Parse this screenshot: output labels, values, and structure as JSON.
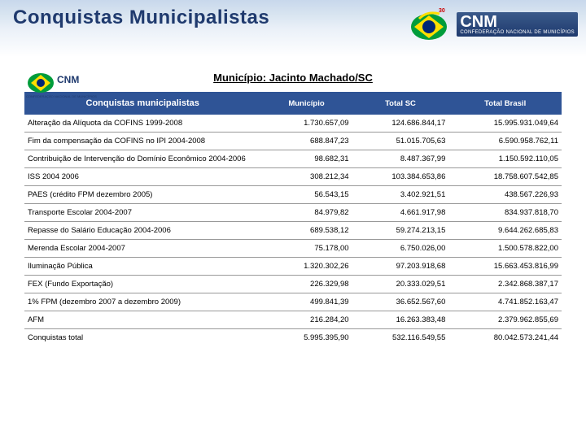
{
  "header": {
    "title": "Conquistas Municipalistas",
    "logo_cnm": "CNM",
    "logo_sub": "CONFEDERAÇÃO NACIONAL DE MUNICÍPIOS"
  },
  "subtitle": "Município: Jacinto Machado/SC",
  "table": {
    "headers": [
      "Conquistas municipalistas",
      "Município",
      "Total SC",
      "Total Brasil"
    ],
    "rows": [
      [
        "Alteração da Alíquota da COFINS        1999-2008",
        "1.730.657,09",
        "124.686.844,17",
        "15.995.931.049,64"
      ],
      [
        "Fim da compensação da COFINS no IPI         2004-2008",
        "688.847,23",
        "51.015.705,63",
        "6.590.958.762,11"
      ],
      [
        "Contribuição de Intervenção do Domínio Econômico        2004-2006",
        "98.682,31",
        "8.487.367,99",
        "1.150.592.110,05"
      ],
      [
        "ISS        2004 2006",
        "308.212,34",
        "103.384.653,86",
        "18.758.607.542,85"
      ],
      [
        "PAES      (crédito FPM dezembro 2005)",
        "56.543,15",
        "3.402.921,51",
        "438.567.226,93"
      ],
      [
        "Transporte Escolar         2004-2007",
        "84.979,82",
        "4.661.917,98",
        "834.937.818,70"
      ],
      [
        "Repasse do Salário Educação         2004-2006",
        "689.538,12",
        "59.274.213,15",
        "9.644.262.685,83"
      ],
      [
        "Merenda Escolar         2004-2007",
        "75.178,00",
        "6.750.026,00",
        "1.500.578.822,00"
      ],
      [
        "Iluminação Pública",
        "1.320.302,26",
        "97.203.918,68",
        "15.663.453.816,99"
      ],
      [
        "FEX      (Fundo Exportação)",
        "226.329,98",
        "20.333.029,51",
        "2.342.868.387,17"
      ],
      [
        "1% FPM (dezembro 2007 a dezembro 2009)",
        "499.841,39",
        "36.652.567,60",
        "4.741.852.163,47"
      ],
      [
        "AFM",
        "216.284,20",
        "16.263.383,48",
        "2.379.962.855,69"
      ],
      [
        "                              Conquistas total",
        "5.995.395,90",
        "532.116.549,55",
        "80.042.573.241,44"
      ]
    ]
  },
  "colors": {
    "header_bg": "#2f5496",
    "title_color": "#1f3a6e",
    "flag_green": "#009c3b",
    "flag_yellow": "#ffdf00",
    "flag_blue": "#002776"
  }
}
